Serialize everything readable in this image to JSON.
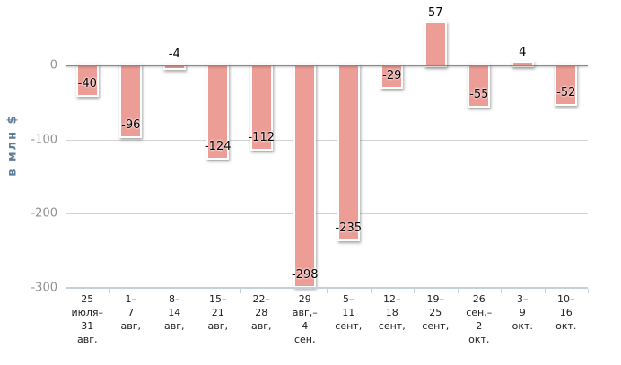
{
  "chart_data": {
    "type": "bar",
    "title": "",
    "xlabel": "",
    "ylabel": "в млн $",
    "categories": [
      "25 июля–31 авг,",
      "1–7 авг,",
      "8–14 авг,",
      "15–21 авг,",
      "22–28 авг,",
      "29 авг,–4 сен,",
      "5–11 сент,",
      "12–18 сент,",
      "19–25 сент,",
      "26 сен,–2 окт,",
      "3–9 окт.",
      "10–16 окт."
    ],
    "category_lines": [
      [
        "25",
        "июля–",
        "31",
        "авг,"
      ],
      [
        "1–",
        "7",
        "авг,"
      ],
      [
        "8–",
        "14",
        "авг,"
      ],
      [
        "15–",
        "21",
        "авг,"
      ],
      [
        "22–",
        "28",
        "авг,"
      ],
      [
        "29",
        "авг,–",
        "4",
        "сен,"
      ],
      [
        "5–",
        "11",
        "сент,"
      ],
      [
        "12–",
        "18",
        "сент,"
      ],
      [
        "19–",
        "25",
        "сент,"
      ],
      [
        "26",
        "сен,–",
        "2",
        "окт,"
      ],
      [
        "3–",
        "9",
        "окт."
      ],
      [
        "10–",
        "16",
        "окт."
      ]
    ],
    "values": [
      -40,
      -96,
      -4,
      -124,
      -112,
      -298,
      -235,
      -29,
      57,
      -55,
      4,
      -52
    ],
    "value_labels": [
      "-40",
      "-96",
      "-4",
      "-124",
      "-112",
      "-298",
      "-235",
      "-29",
      "57",
      "-55",
      "4",
      "-52"
    ],
    "yticks": [
      0,
      -100,
      -200,
      -300
    ],
    "ylim": [
      -300,
      70
    ],
    "grid": true,
    "legend": "none",
    "colors": {
      "bar": "#ec9d96",
      "bar_border": "#ffffff",
      "gridline": "#d3d3d3",
      "zero_line": "#878787",
      "axis_line": "#c3d1dc",
      "ytick_text": "#909090",
      "xtick_text": "#1c1c1c",
      "value_label": "#000000",
      "ylabel_text": "#5e7d99",
      "background": "#ffffff"
    }
  }
}
